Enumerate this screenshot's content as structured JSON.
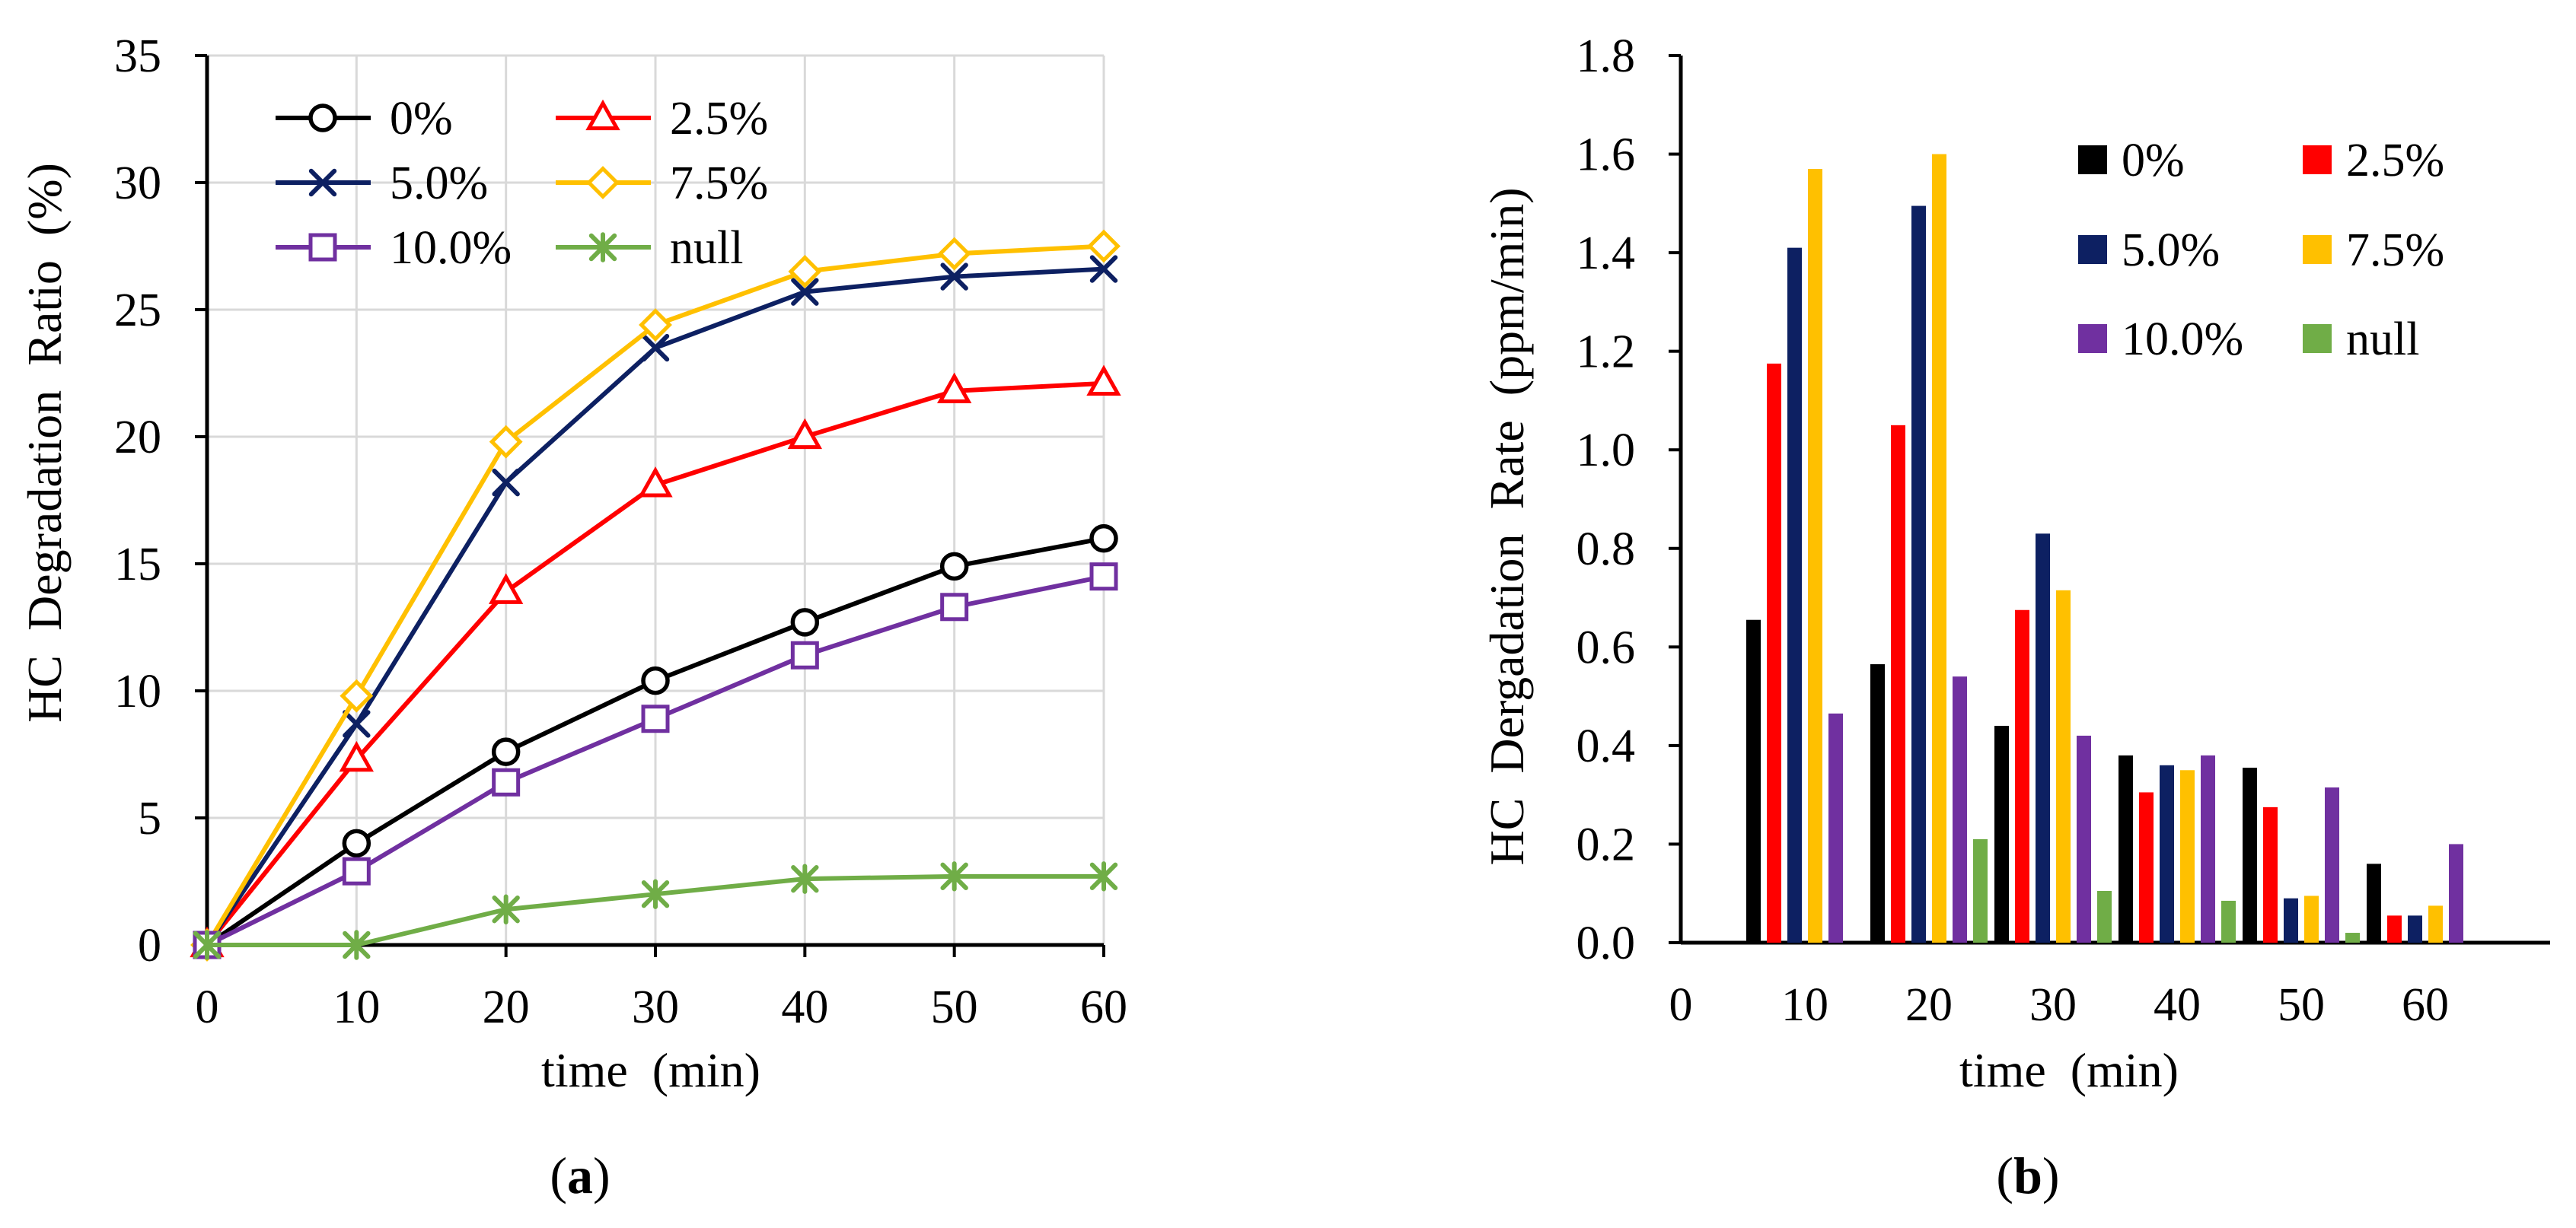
{
  "chart_data": [
    {
      "type": "line",
      "panel_label": {
        "open": "(",
        "letter": "a",
        "close": ")"
      },
      "xlabel": "time  (min)",
      "ylabel": "HC  Degradation  Ratio  (%)",
      "x": [
        0,
        10,
        20,
        30,
        40,
        50,
        60
      ],
      "xlim": [
        0,
        60
      ],
      "ylim": [
        0,
        35
      ],
      "xticks": [
        "0",
        "10",
        "20",
        "30",
        "40",
        "50",
        "60"
      ],
      "yticks": [
        "0",
        "5",
        "10",
        "15",
        "20",
        "25",
        "30",
        "35"
      ],
      "grid": true,
      "legend_position": "top-left",
      "series": [
        {
          "name": "0%",
          "color": "#000000",
          "marker": "circle",
          "values": [
            0,
            4.0,
            7.6,
            10.4,
            12.7,
            14.9,
            16.0
          ]
        },
        {
          "name": "2.5%",
          "color": "#ff0000",
          "marker": "triangle",
          "values": [
            0,
            7.3,
            13.9,
            18.1,
            20.0,
            21.8,
            22.1
          ]
        },
        {
          "name": "5.0%",
          "color": "#0d2062",
          "marker": "x",
          "values": [
            0,
            8.7,
            18.2,
            23.5,
            25.7,
            26.3,
            26.6
          ]
        },
        {
          "name": "7.5%",
          "color": "#ffc000",
          "marker": "diamond",
          "values": [
            0,
            9.8,
            19.8,
            24.4,
            26.5,
            27.2,
            27.5
          ]
        },
        {
          "name": "10.0%",
          "color": "#7030a0",
          "marker": "square",
          "values": [
            0,
            2.9,
            6.4,
            8.9,
            11.4,
            13.3,
            14.5
          ]
        },
        {
          "name": "null",
          "color": "#70ad47",
          "marker": "star",
          "values": [
            0,
            0.0,
            1.4,
            2.0,
            2.6,
            2.7,
            2.7
          ]
        }
      ]
    },
    {
      "type": "bar",
      "panel_label": {
        "open": "(",
        "letter": "b",
        "close": ")"
      },
      "xlabel": "time  (min)",
      "ylabel": "HC  Dergadation  Rate  (ppm/min)",
      "categories": [
        "10",
        "20",
        "30",
        "40",
        "50",
        "60"
      ],
      "xticks": [
        "0",
        "10",
        "20",
        "30",
        "40",
        "50",
        "60"
      ],
      "ylim": [
        0,
        1.8
      ],
      "yticks": [
        "0.0",
        "0.2",
        "0.4",
        "0.6",
        "0.8",
        "1.0",
        "1.2",
        "1.4",
        "1.6",
        "1.8"
      ],
      "grid": false,
      "legend_position": "top-right",
      "series": [
        {
          "name": "0%",
          "color": "#000000",
          "values": [
            0.655,
            0.565,
            0.44,
            0.38,
            0.355,
            0.16
          ]
        },
        {
          "name": "2.5%",
          "color": "#ff0000",
          "values": [
            1.175,
            1.05,
            0.675,
            0.305,
            0.275,
            0.055
          ]
        },
        {
          "name": "5.0%",
          "color": "#0d2062",
          "values": [
            1.41,
            1.495,
            0.83,
            0.36,
            0.09,
            0.055
          ]
        },
        {
          "name": "7.5%",
          "color": "#ffc000",
          "values": [
            1.57,
            1.6,
            0.715,
            0.35,
            0.095,
            0.075
          ]
        },
        {
          "name": "10.0%",
          "color": "#7030a0",
          "values": [
            0.465,
            0.54,
            0.42,
            0.38,
            0.315,
            0.2
          ]
        },
        {
          "name": "null",
          "color": "#70ad47",
          "values": [
            0.0,
            0.21,
            0.105,
            0.085,
            0.02,
            0.0
          ]
        }
      ]
    }
  ]
}
